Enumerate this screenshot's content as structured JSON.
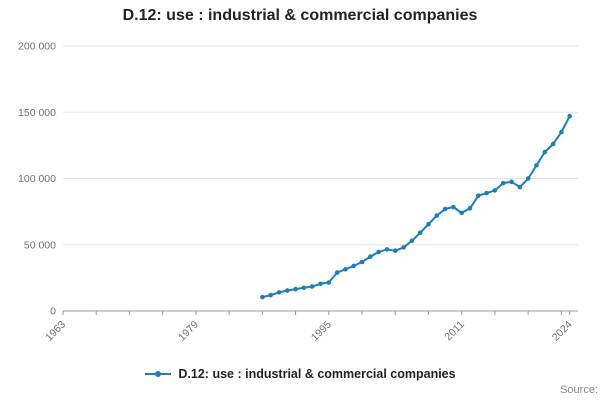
{
  "title": "D.12: use : industrial & commercial companies",
  "legend": {
    "label": "D.12: use : industrial & commercial companies"
  },
  "source_label": "Source:",
  "colors": {
    "accent": "#1f7eb5",
    "grid": "#e6e6e6",
    "axis": "#999999",
    "tick_label": "#6e6e6e",
    "title_text": "#222222"
  },
  "chart_data": {
    "type": "line",
    "title": "D.12: use : industrial & commercial companies",
    "xlabel": "",
    "ylabel": "",
    "grid": "horizontal",
    "legend_position": "bottom",
    "x_axis_range": [
      1963,
      2025
    ],
    "ylim": [
      0,
      200000
    ],
    "y_ticks": [
      0,
      50000,
      100000,
      150000,
      200000
    ],
    "y_tick_labels": [
      "0",
      "50 000",
      "100 000",
      "150 000",
      "200 000"
    ],
    "x_ticks_labeled": [
      1963,
      1979,
      1995,
      2011,
      2024
    ],
    "x_minor_tick_step": 4,
    "series": [
      {
        "name": "D.12: use : industrial & commercial companies",
        "x": [
          1987,
          1988,
          1989,
          1990,
          1991,
          1992,
          1993,
          1994,
          1995,
          1996,
          1997,
          1998,
          1999,
          2000,
          2001,
          2002,
          2003,
          2004,
          2005,
          2006,
          2007,
          2008,
          2009,
          2010,
          2011,
          2012,
          2013,
          2014,
          2015,
          2016,
          2017,
          2018,
          2019,
          2020,
          2021,
          2022,
          2023,
          2024
        ],
        "values": [
          10500,
          12000,
          14000,
          15500,
          16500,
          17500,
          18500,
          20500,
          21500,
          29000,
          31500,
          34000,
          37000,
          41000,
          44500,
          46500,
          45500,
          48000,
          53000,
          59000,
          65500,
          72000,
          77000,
          78500,
          74000,
          77500,
          87000,
          89000,
          91000,
          96500,
          97500,
          93500,
          100000,
          110000,
          120000,
          126000,
          135000,
          147000
        ]
      }
    ]
  }
}
